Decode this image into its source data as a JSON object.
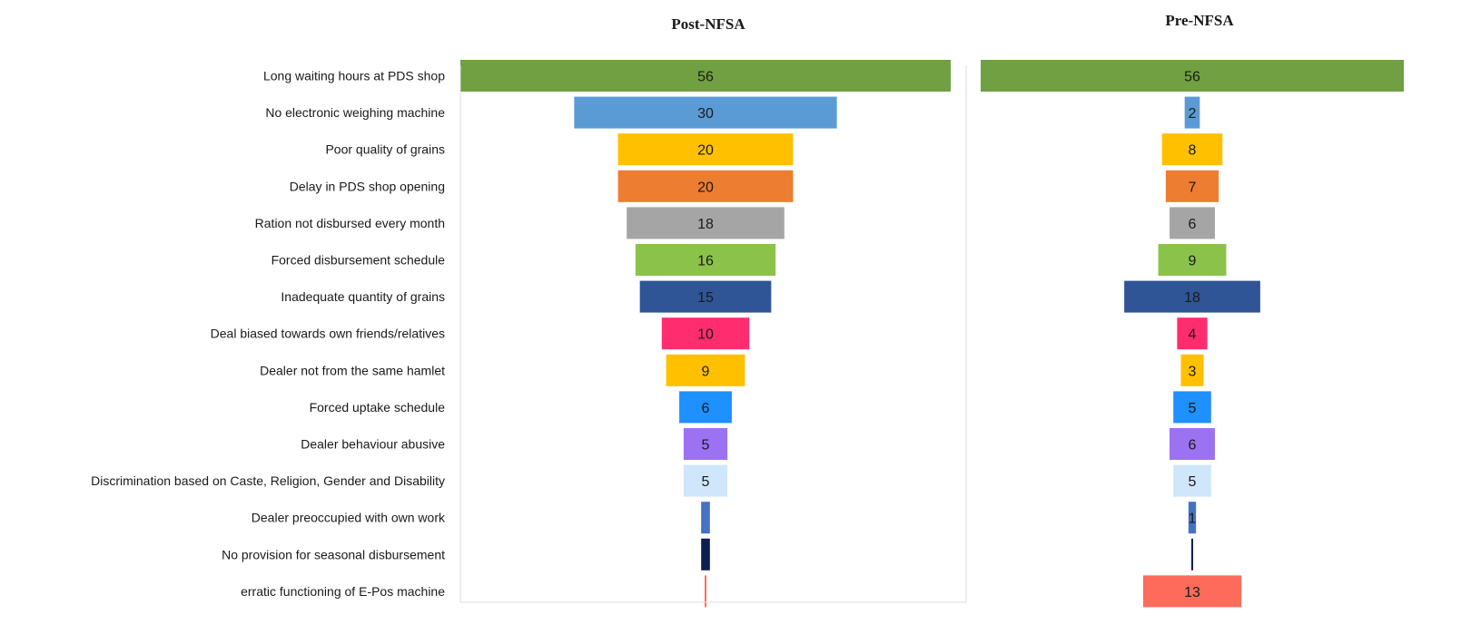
{
  "chart_data": {
    "type": "bar",
    "categories": [
      "Long waiting hours at PDS shop",
      "No electronic weighing machine",
      "Poor quality of grains",
      "Delay in PDS shop opening",
      "Ration not disbursed every month",
      "Forced disbursement schedule",
      "Inadequate quantity of grains",
      "Deal biased towards own friends/relatives",
      "Dealer not from the same hamlet",
      "Forced uptake schedule",
      "Dealer behaviour abusive",
      "Discrimination based on Caste, Religion, Gender and Disability",
      "Dealer preoccupied with own work",
      "No provision for seasonal disbursement",
      "erratic functioning of E-Pos machine"
    ],
    "series": [
      {
        "name": "Post-NFSA",
        "values": [
          56,
          30,
          20,
          20,
          18,
          16,
          15,
          10,
          9,
          6,
          5,
          5,
          1,
          1,
          0.2
        ],
        "labels": [
          "56",
          "30",
          "20",
          "20",
          "18",
          "16",
          "15",
          "10",
          "9",
          "6",
          "5",
          "5",
          "",
          "",
          ""
        ]
      },
      {
        "name": "Pre-NFSA",
        "values": [
          56,
          2,
          8,
          7,
          6,
          9,
          18,
          4,
          3,
          5,
          6,
          5,
          1,
          0.2,
          13
        ],
        "labels": [
          "56",
          "2",
          "8",
          "7",
          "6",
          "9",
          "18",
          "4",
          "3",
          "5",
          "6",
          "5",
          "1",
          "",
          "13"
        ]
      }
    ],
    "colors": [
      "#70a041",
      "#5b9bd5",
      "#ffc000",
      "#ed7d31",
      "#a5a5a5",
      "#8bc34a",
      "#2f5597",
      "#ff2d6f",
      "#ffc000",
      "#1e90ff",
      "#9b72f2",
      "#cfe6fb",
      "#4472c4",
      "#0d1f4f",
      "#ff6b5b"
    ],
    "xlim": [
      0,
      56
    ],
    "legend": "none",
    "grid": false
  }
}
